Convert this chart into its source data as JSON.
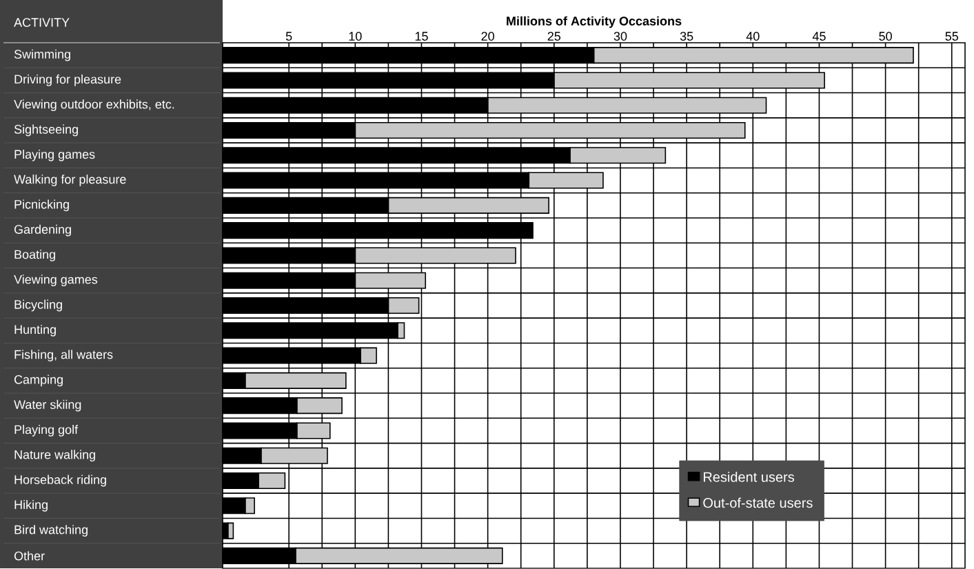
{
  "chart_data": {
    "type": "bar",
    "orientation": "horizontal",
    "stacked": true,
    "xlabel": "Millions of Activity Occasions",
    "ylabel": "ACTIVITY",
    "categories": [
      "Swimming",
      "Driving for pleasure",
      "Viewing outdoor exhibits, etc.",
      "Sightseeing",
      "Playing games",
      "Walking for pleasure",
      "Picnicking",
      "Gardening",
      "Boating",
      "Viewing games",
      "Bicycling",
      "Hunting",
      "Fishing, all waters",
      "Camping",
      "Water skiing",
      "Playing golf",
      "Nature walking",
      "Horseback riding",
      "Hiking",
      "Bird watching",
      "Other"
    ],
    "series": [
      {
        "name": "Resident users",
        "color": "#000000",
        "values": [
          28.0,
          25.0,
          20.0,
          10.0,
          26.2,
          23.1,
          12.5,
          23.4,
          10.0,
          10.0,
          12.5,
          13.2,
          10.4,
          1.7,
          5.6,
          5.6,
          2.9,
          2.7,
          1.7,
          0.4,
          5.5
        ]
      },
      {
        "name": "Out-of-state users",
        "color": "#c8c8c8",
        "values": [
          24.1,
          20.4,
          21.0,
          29.4,
          7.2,
          5.6,
          12.1,
          0,
          12.1,
          5.3,
          2.3,
          0.5,
          1.2,
          7.6,
          3.4,
          2.5,
          5.0,
          2.0,
          0.7,
          0.4,
          15.6
        ]
      }
    ],
    "xlim": [
      0,
      56
    ],
    "xticks": [
      5,
      10,
      15,
      20,
      25,
      30,
      35,
      40,
      45,
      50,
      55
    ],
    "grid": true,
    "legend": "bottom right"
  }
}
